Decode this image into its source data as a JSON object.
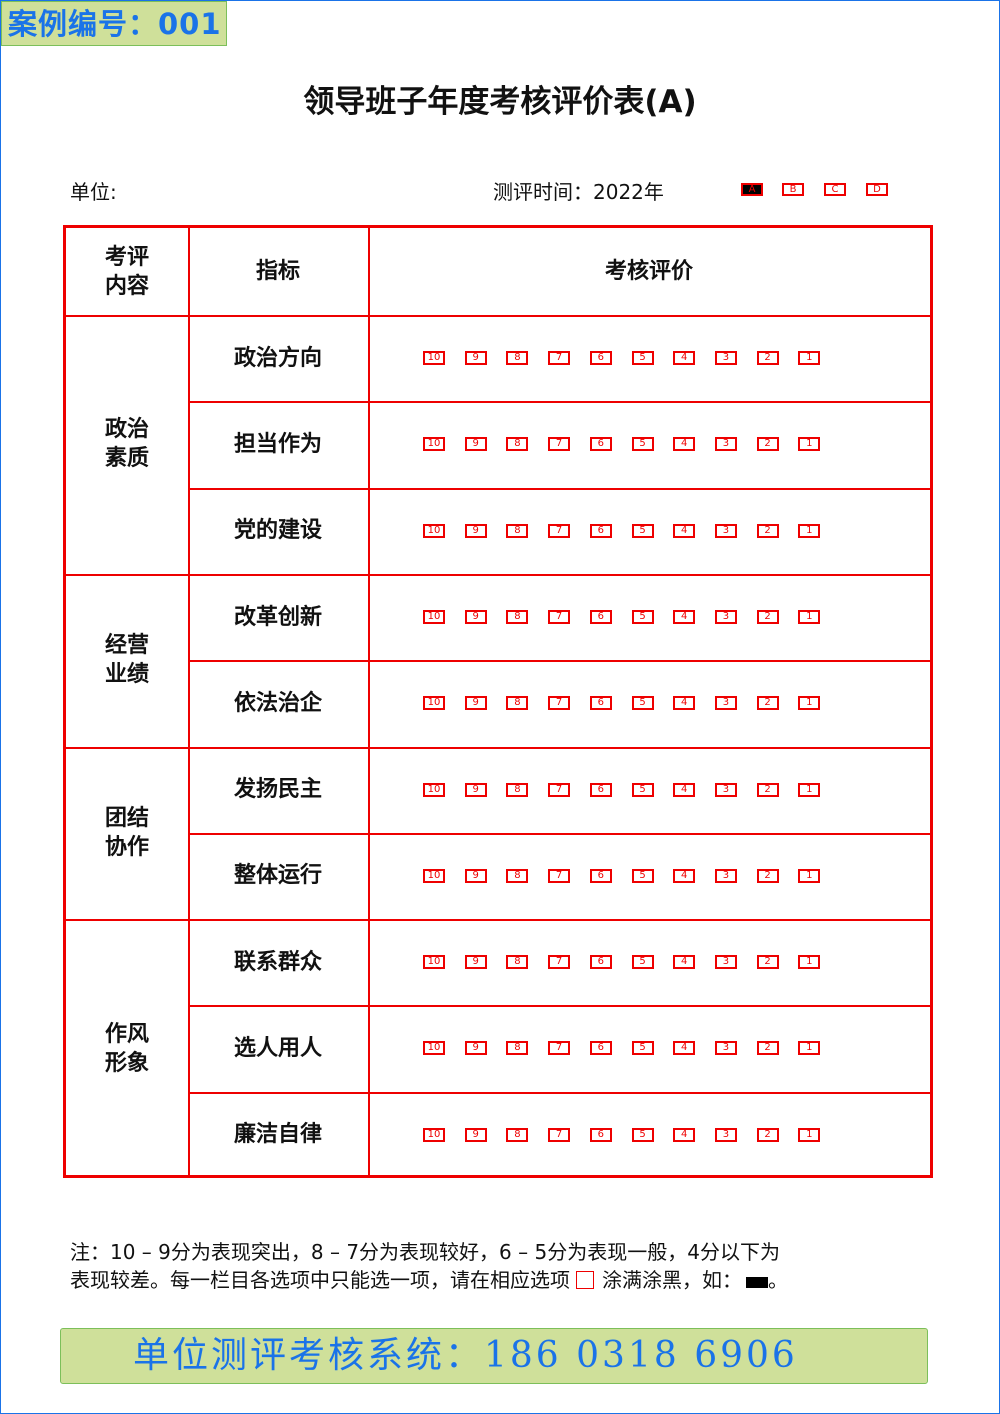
{
  "case_label": "案例编号：001",
  "title": "领导班子年度考核评价表(A)",
  "unit_label": "单位:",
  "eval_time": "测评时间：2022年",
  "versions": [
    "A",
    "B",
    "C",
    "D"
  ],
  "selected_version": "A",
  "colors": {
    "accent": "#e00000",
    "brand_blue": "#1a73e8",
    "banner_green": "#cfe09a"
  },
  "table": {
    "headers": [
      "考评\n内容",
      "指标",
      "考核评价"
    ],
    "scores": [
      "10",
      "9",
      "8",
      "7",
      "6",
      "5",
      "4",
      "3",
      "2",
      "1"
    ],
    "groups": [
      {
        "name": "政治\n素质",
        "items": [
          "政治方向",
          "担当作为",
          "党的建设"
        ]
      },
      {
        "name": "经营\n业绩",
        "items": [
          "改革创新",
          "依法治企"
        ]
      },
      {
        "name": "团结\n协作",
        "items": [
          "发扬民主",
          "整体运行"
        ]
      },
      {
        "name": "作风\n形象",
        "items": [
          "联系群众",
          "选人用人",
          "廉洁自律"
        ]
      }
    ]
  },
  "note": {
    "line1": "注：10 – 9分为表现突出，8 – 7分为表现较好，6 – 5分为表现一般，4分以下为",
    "line2a": "表现较差。每一栏目各选项中只能选一项，请在相应选项",
    "line2b": "涂满涂黑，如：",
    "line2c": "。"
  },
  "footer": "单位测评考核系统：186 0318 6906"
}
